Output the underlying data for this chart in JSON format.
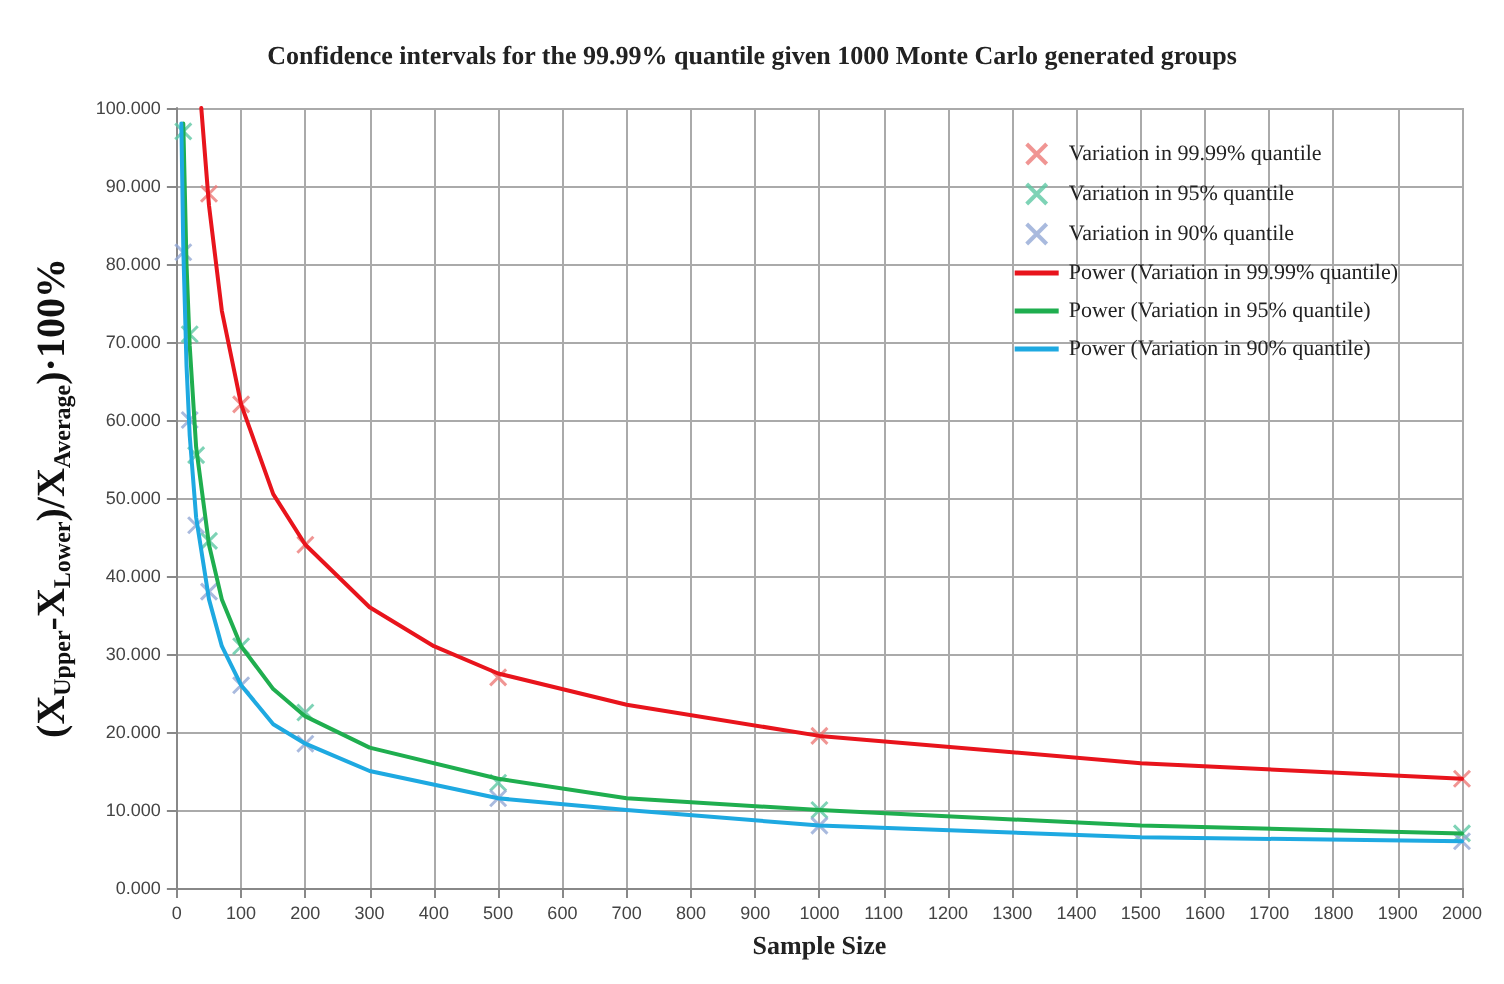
{
  "chart_data": {
    "type": "scatter",
    "title": "Confidence intervals for the 99.99% quantile given 1000 Monte Carlo generated groups",
    "xlabel": "Sample Size",
    "ylabel": "(X$_{Upper}$-X$_{Lower}$)/X$_{Average}$)·100%",
    "xlim": [
      0,
      2000
    ],
    "xticks": [
      0,
      100,
      200,
      300,
      400,
      500,
      600,
      700,
      800,
      900,
      1000,
      1100,
      1200,
      1300,
      1400,
      1500,
      1600,
      1700,
      1800,
      1900,
      2000
    ],
    "ylim": [
      0,
      100
    ],
    "yticks": [
      {
        "value": 0,
        "label": "0.000"
      },
      {
        "value": 10,
        "label": "10.000"
      },
      {
        "value": 20,
        "label": "20.000"
      },
      {
        "value": 30,
        "label": "30.000"
      },
      {
        "value": 40,
        "label": "40.000"
      },
      {
        "value": 50,
        "label": "50.000"
      },
      {
        "value": 60,
        "label": "60.000"
      },
      {
        "value": 70,
        "label": "70.000"
      },
      {
        "value": 80,
        "label": "80.000"
      },
      {
        "value": 90,
        "label": "90.000"
      },
      {
        "value": 100,
        "label": "100.000"
      }
    ],
    "grid": true,
    "legend": "top right",
    "marker": "cross",
    "series": [
      {
        "name": "Variation in 99.99% quantile",
        "color": "#ec7a78",
        "x": [
          50,
          100,
          200,
          500,
          1000,
          2000
        ],
        "values": [
          89,
          62,
          44,
          27,
          19.5,
          14
        ]
      },
      {
        "name": "Variation in 95% quantile",
        "color": "#5ec8a4",
        "x": [
          10,
          20,
          30,
          50,
          100,
          200,
          500,
          1000,
          2000
        ],
        "values": [
          97,
          71,
          55.5,
          44.5,
          31,
          22.5,
          13.5,
          10,
          7
        ]
      },
      {
        "name": "Variation in 90% quantile",
        "color": "#93a9d6",
        "x": [
          10,
          20,
          30,
          50,
          100,
          200,
          500,
          1000,
          2000
        ],
        "values": [
          81.5,
          60,
          46.5,
          38,
          26,
          18.5,
          11.5,
          8,
          6
        ]
      },
      {
        "name": "Power (Variation in 99.99% quantile)",
        "type": "line",
        "marker": "none",
        "color": "#e8141c",
        "x": [
          38,
          50,
          70,
          100,
          150,
          200,
          300,
          400,
          500,
          700,
          1000,
          1500,
          2000
        ],
        "values": [
          100,
          87.5,
          74,
          62,
          50.5,
          44,
          36,
          31,
          27.5,
          23.5,
          19.5,
          16,
          14
        ]
      },
      {
        "name": "Power (Variation in 95% quantile)",
        "type": "line",
        "marker": "none",
        "color": "#1fae4f",
        "x": [
          10,
          15,
          20,
          30,
          50,
          70,
          100,
          150,
          200,
          300,
          500,
          700,
          1000,
          1500,
          2000
        ],
        "values": [
          98,
          80,
          69.5,
          56.5,
          44,
          37,
          31,
          25.5,
          22,
          18,
          14,
          11.5,
          10,
          8,
          7
        ]
      },
      {
        "name": "Power (Variation in 90% quantile)",
        "type": "line",
        "marker": "none",
        "color": "#1ea9e1",
        "x": [
          7,
          10,
          15,
          20,
          30,
          50,
          70,
          100,
          150,
          200,
          300,
          500,
          700,
          1000,
          1500,
          2000
        ],
        "values": [
          98,
          82,
          67,
          58,
          47.5,
          37,
          31,
          26,
          21,
          18.5,
          15,
          11.5,
          10,
          8,
          6.5,
          6
        ]
      }
    ]
  }
}
